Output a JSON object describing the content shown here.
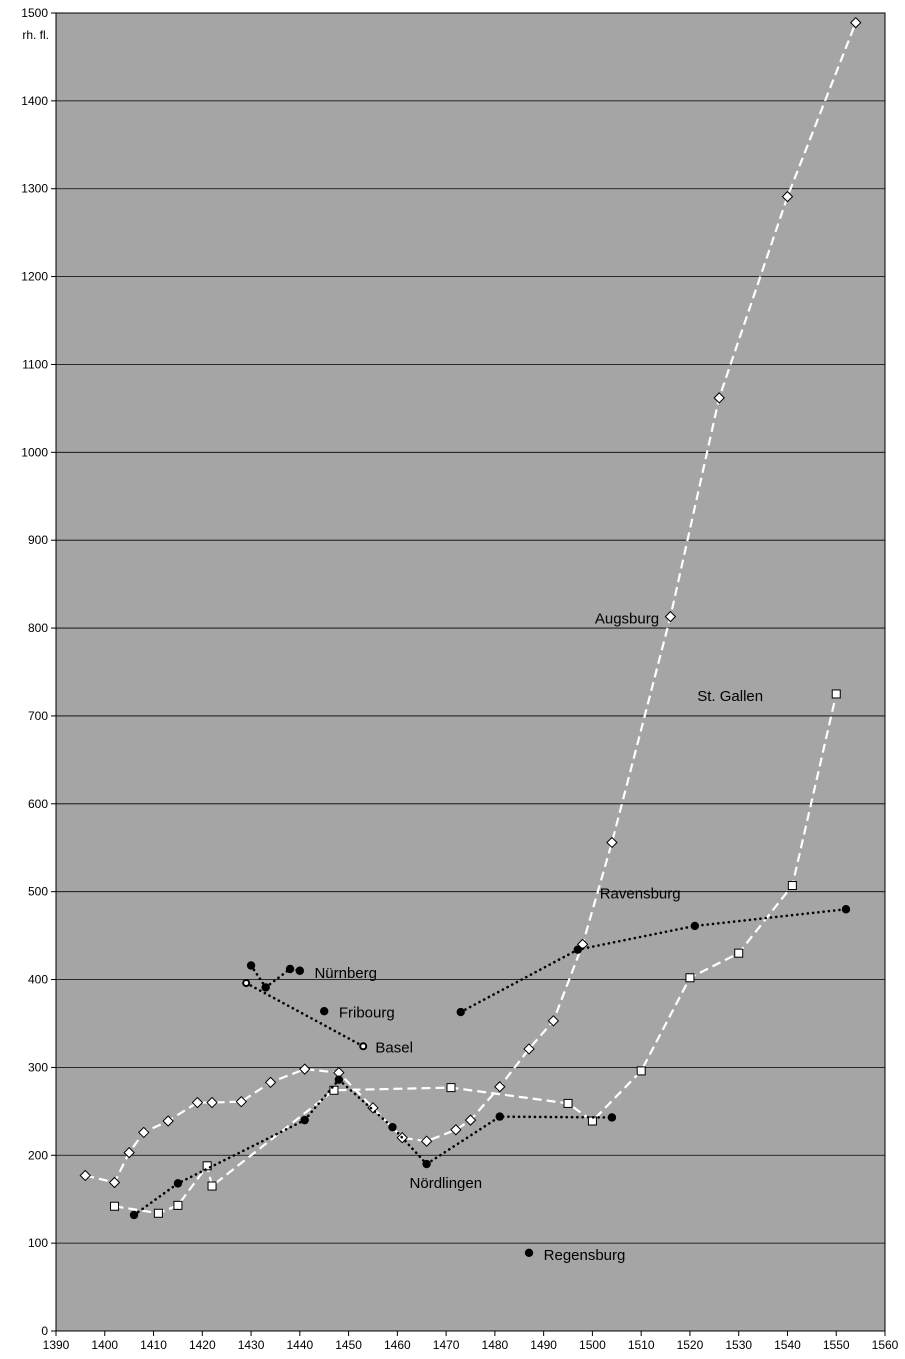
{
  "chart_data": {
    "type": "line",
    "title": "",
    "xlabel": "",
    "ylabel": "rh. fl.",
    "xlim": [
      1390,
      1560
    ],
    "ylim": [
      0,
      1500
    ],
    "x_ticks": [
      1390,
      1400,
      1410,
      1420,
      1430,
      1440,
      1450,
      1460,
      1470,
      1480,
      1490,
      1500,
      1510,
      1520,
      1530,
      1540,
      1550,
      1560
    ],
    "y_ticks": [
      0,
      100,
      200,
      300,
      400,
      500,
      600,
      700,
      800,
      900,
      1000,
      1100,
      1200,
      1300,
      1400,
      1500
    ],
    "grid": "horizontal",
    "plot_background": "#a5a5a5",
    "series": [
      {
        "name": "Augsburg",
        "line": "white-dashed",
        "marker": "diamond-open",
        "x": [
          1396,
          1402,
          1405,
          1408,
          1413,
          1419,
          1422,
          1428,
          1434,
          1441,
          1448,
          1455,
          1461,
          1466,
          1472,
          1475,
          1481,
          1487,
          1492,
          1498,
          1504,
          1516,
          1526,
          1540,
          1554
        ],
        "y": [
          177,
          169,
          203,
          226,
          239,
          260,
          260,
          261,
          283,
          298,
          294,
          254,
          220,
          216,
          229,
          240,
          278,
          321,
          353,
          440,
          556,
          813,
          1062,
          1291,
          1489
        ]
      },
      {
        "name": "St. Gallen",
        "line": "white-dashed",
        "marker": "square-open",
        "x": [
          1402,
          1411,
          1415,
          1421,
          1422,
          1447,
          1471,
          1495,
          1500,
          1510,
          1520,
          1530,
          1541,
          1550
        ],
        "y": [
          142,
          134,
          143,
          188,
          165,
          274,
          277,
          259,
          239,
          296,
          402,
          430,
          507,
          725
        ]
      },
      {
        "name": "Nördlingen",
        "line": "black-dotted",
        "marker": "dot",
        "x": [
          1406,
          1415,
          1441,
          1448,
          1459,
          1466,
          1481,
          1504
        ],
        "y": [
          132,
          168,
          240,
          286,
          232,
          190,
          244,
          243
        ]
      },
      {
        "name": "Nürnberg",
        "line": "black-dotted",
        "marker": "dot",
        "x": [
          1430,
          1433,
          1438,
          1440
        ],
        "y": [
          416,
          391,
          412,
          410
        ]
      },
      {
        "name": "Basel",
        "line": "black-dotted",
        "marker": "circle-open",
        "x": [
          1429,
          1453
        ],
        "y": [
          396,
          324
        ]
      },
      {
        "name": "Ravensburg",
        "line": "black-dotted",
        "marker": "dot",
        "x": [
          1473,
          1497,
          1521,
          1552
        ],
        "y": [
          363,
          434,
          461,
          480
        ]
      },
      {
        "name": "Fribourg",
        "line": "none",
        "marker": "dot",
        "x": [
          1445
        ],
        "y": [
          364
        ]
      },
      {
        "name": "Regensburg",
        "line": "none",
        "marker": "dot",
        "x": [
          1487
        ],
        "y": [
          89
        ]
      }
    ],
    "annotations": [
      {
        "text": "Augsburg",
        "x": 1500.5,
        "y": 805,
        "align": "start"
      },
      {
        "text": "St. Gallen",
        "x": 1521.5,
        "y": 717,
        "align": "start"
      },
      {
        "text": "Ravensburg",
        "x": 1501.5,
        "y": 492,
        "align": "start"
      },
      {
        "text": "Nürnberg",
        "x": 1443,
        "y": 402,
        "align": "start"
      },
      {
        "text": "Fribourg",
        "x": 1448,
        "y": 357,
        "align": "start"
      },
      {
        "text": "Basel",
        "x": 1455.5,
        "y": 317,
        "align": "start"
      },
      {
        "text": "Nördlingen",
        "x": 1462.5,
        "y": 163,
        "align": "start"
      },
      {
        "text": "Regensburg",
        "x": 1490,
        "y": 81,
        "align": "start"
      }
    ]
  }
}
